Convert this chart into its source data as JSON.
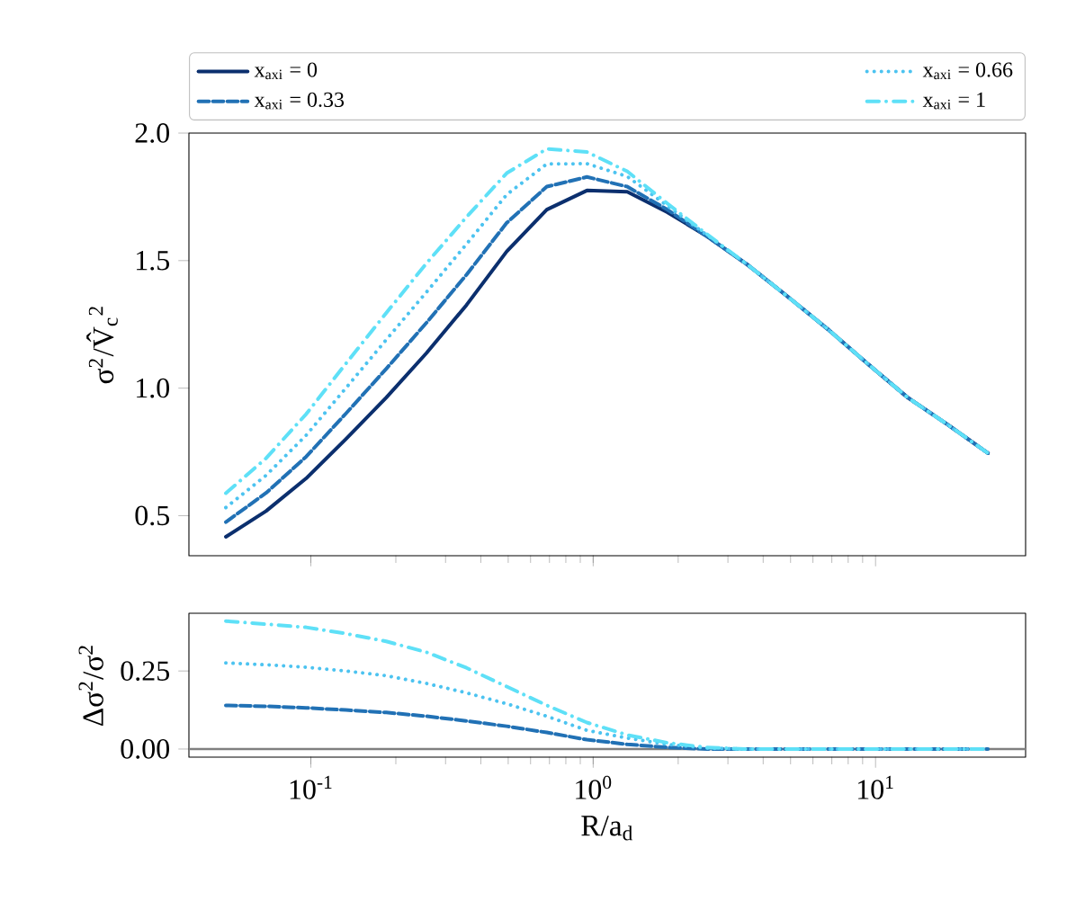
{
  "chart_data": [
    {
      "type": "line",
      "ylabel": "σ$^{2}$/V̂$_{c}$$^{2}$",
      "log": "x",
      "tick_labels": "y",
      "legend": "top",
      "x": [
        0.05,
        0.0694,
        0.0962,
        0.133,
        0.185,
        0.257,
        0.356,
        0.494,
        0.685,
        0.95,
        1.32,
        1.83,
        2.53,
        3.51,
        4.87,
        6.76,
        9.37,
        13.0,
        18.0,
        25.0
      ],
      "xlim": [
        0.037,
        34
      ],
      "ylim": [
        0.343,
        2.0
      ],
      "xticks": [
        {
          "value": 0.1,
          "label": null
        },
        {
          "value": 1,
          "label": null
        },
        {
          "value": 10,
          "label": null
        }
      ],
      "yticks": [
        {
          "value": 0.5,
          "label": "0.5"
        },
        {
          "value": 1,
          "label": "1.0"
        },
        {
          "value": 1.5,
          "label": "1.5"
        },
        {
          "value": 2,
          "label": "2.0"
        }
      ],
      "series": [
        {
          "name": "x$_{axi}$ = 0",
          "color": "#0b2f6e",
          "line_style": "solid",
          "values": [
            0.417,
            0.518,
            0.646,
            0.8,
            0.963,
            1.138,
            1.326,
            1.536,
            1.7,
            1.775,
            1.77,
            1.69,
            1.595,
            1.485,
            1.36,
            1.232,
            1.096,
            0.963,
            0.857,
            0.745
          ]
        },
        {
          "name": "x$_{axi}$ = 0.33",
          "color": "#2171b5",
          "line_style": "dashed",
          "values": [
            0.475,
            0.589,
            0.731,
            0.9,
            1.076,
            1.257,
            1.445,
            1.648,
            1.79,
            1.828,
            1.79,
            1.7,
            1.595,
            1.485,
            1.36,
            1.232,
            1.096,
            0.963,
            0.857,
            0.745
          ]
        },
        {
          "name": "x$_{axi}$ = 0.66",
          "color": "#4cc3f0",
          "line_style": "dotted",
          "values": [
            0.532,
            0.658,
            0.815,
            1.0,
            1.19,
            1.377,
            1.565,
            1.759,
            1.879,
            1.88,
            1.83,
            1.715,
            1.6,
            1.485,
            1.36,
            1.232,
            1.096,
            0.963,
            0.857,
            0.745
          ]
        },
        {
          "name": "x$_{axi}$ = 1",
          "color": "#5ee0f7",
          "line_style": "dashdot",
          "values": [
            0.588,
            0.725,
            0.898,
            1.096,
            1.295,
            1.49,
            1.671,
            1.843,
            1.938,
            1.926,
            1.85,
            1.724,
            1.603,
            1.485,
            1.36,
            1.232,
            1.096,
            0.963,
            0.857,
            0.745
          ]
        }
      ]
    },
    {
      "type": "line",
      "ylabel": "Δσ$^{2}$/σ$^{2}$",
      "xlabel": "R/a$_{d}$",
      "log": "x",
      "x": [
        0.05,
        0.0694,
        0.0962,
        0.133,
        0.185,
        0.257,
        0.356,
        0.494,
        0.685,
        0.95,
        1.32,
        1.83,
        2.53,
        3.51,
        4.87,
        6.76,
        9.37,
        13.0,
        18.0,
        25.0
      ],
      "xlim": [
        0.037,
        34
      ],
      "ylim": [
        -0.026,
        0.435
      ],
      "xticks": [
        {
          "value": 0.1,
          "label": "10$^{-1}$"
        },
        {
          "value": 1,
          "label": "10$^{0}$"
        },
        {
          "value": 10,
          "label": "10$^{1}$"
        }
      ],
      "yticks": [
        {
          "value": 0,
          "label": "0.00"
        },
        {
          "value": 0.25,
          "label": "0.25"
        }
      ],
      "ref_lines": [
        {
          "axis": "y",
          "value": 0,
          "color": "#808080"
        }
      ],
      "series": [
        {
          "color": "#2171b5",
          "line_style": "dashed",
          "values": [
            0.14,
            0.137,
            0.132,
            0.125,
            0.117,
            0.105,
            0.09,
            0.073,
            0.053,
            0.03,
            0.015,
            0.005,
            0,
            0,
            0,
            0,
            0,
            0,
            0,
            0
          ]
        },
        {
          "color": "#4cc3f0",
          "line_style": "dotted",
          "values": [
            0.276,
            0.27,
            0.262,
            0.25,
            0.235,
            0.21,
            0.18,
            0.145,
            0.105,
            0.06,
            0.035,
            0.015,
            0.003,
            0,
            0,
            0,
            0,
            0,
            0,
            0
          ]
        },
        {
          "color": "#5ee0f7",
          "line_style": "dashdot",
          "values": [
            0.41,
            0.4,
            0.39,
            0.37,
            0.345,
            0.31,
            0.26,
            0.2,
            0.14,
            0.085,
            0.045,
            0.02,
            0.005,
            0,
            0,
            0,
            0,
            0,
            0,
            0
          ]
        }
      ]
    }
  ]
}
